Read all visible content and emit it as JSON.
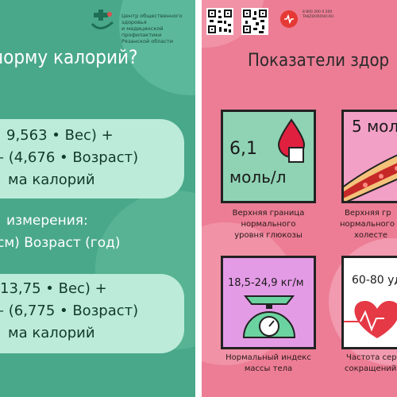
{
  "left": {
    "org": [
      "Центр общественного здоровья",
      "и медицинской профилактики",
      "Рязанской области"
    ],
    "heading": "норму калорий?",
    "formula1": [
      "9,563 • Вес) +",
      "– (4,676 • Возраст)",
      "ма калорий"
    ],
    "units_heading": "измерения:",
    "units": "см)  Возраст (год)",
    "formula2": [
      "13,75 • Вес) +",
      "– (6,775 • Возраст)",
      "ма калорий"
    ]
  },
  "right": {
    "title": "Показатели здор",
    "contact": [
      "8 800 200 0 200",
      "TAKZDOROVO.RU"
    ],
    "tiles": [
      {
        "value_line1": "6,1",
        "value_line2": "моль/л",
        "caption": [
          "Верхняя граница",
          "нормального",
          "уровня глюкозы"
        ]
      },
      {
        "value_line1": "5 мол",
        "caption": [
          "Верхняя гр",
          "нормального",
          "холесте"
        ]
      },
      {
        "value_line1": "18,5-24,9 кг/м",
        "caption": [
          "Нормальный индекс",
          "массы тела"
        ]
      },
      {
        "value_line1": "60-80 уд",
        "caption": [
          "Частота серд",
          "сокращений"
        ]
      }
    ]
  },
  "colors": {
    "left_bg": "#4aa88a",
    "right_bg": "#ec7d95",
    "card": "#bcebd9",
    "tile_green": "#8fd3b4",
    "tile_pink": "#f3a0c6"
  }
}
